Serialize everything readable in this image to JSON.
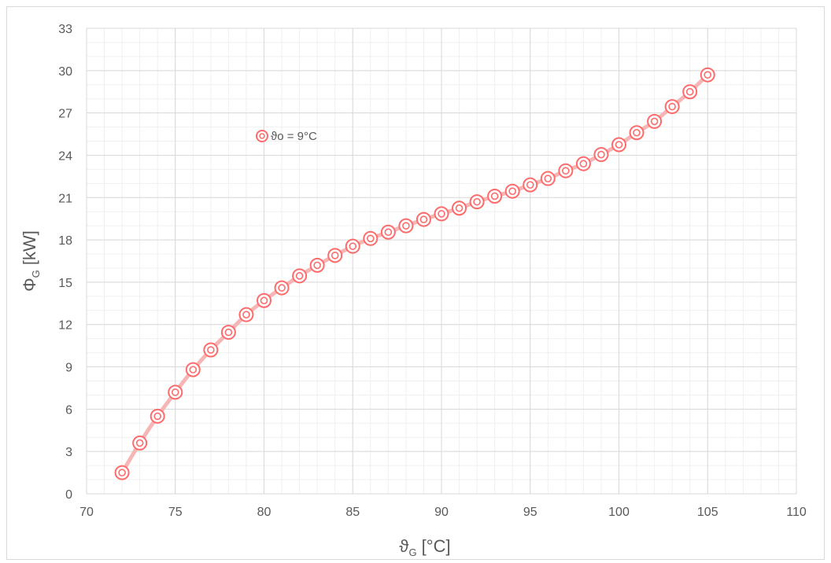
{
  "chart_data": {
    "type": "scatter",
    "xlabel": {
      "main": "ϑ",
      "sub": "G",
      "unit": " [°C]"
    },
    "ylabel": {
      "main": "Φ",
      "sub": "G",
      "unit": " [kW]"
    },
    "xlim": [
      70,
      110
    ],
    "ylim": [
      0,
      33
    ],
    "x_ticks": [
      70,
      75,
      80,
      85,
      90,
      95,
      100,
      105,
      110
    ],
    "y_ticks": [
      0,
      3,
      6,
      9,
      12,
      15,
      18,
      21,
      24,
      27,
      30,
      33
    ],
    "x_minor_step": 1,
    "y_minor_step": 1,
    "grid": true,
    "legend_position": "inside-top-left",
    "series": [
      {
        "name": "ϑo = 9°C",
        "color": "#ff6b6b",
        "line_color": "#f7b6b6",
        "x": [
          72,
          73,
          74,
          75,
          76,
          77,
          78,
          79,
          80,
          81,
          82,
          83,
          84,
          85,
          86,
          87,
          88,
          89,
          90,
          91,
          92,
          93,
          94,
          95,
          96,
          97,
          98,
          99,
          100,
          101,
          102,
          103,
          104,
          105
        ],
        "y": [
          1.5,
          3.6,
          5.5,
          7.2,
          8.8,
          10.2,
          11.45,
          12.7,
          13.7,
          14.6,
          15.45,
          16.2,
          16.9,
          17.55,
          18.1,
          18.55,
          19.0,
          19.45,
          19.85,
          20.25,
          20.7,
          21.1,
          21.45,
          21.9,
          22.35,
          22.9,
          23.4,
          24.05,
          24.75,
          25.6,
          26.4,
          27.45,
          28.5,
          29.7
        ]
      }
    ]
  }
}
